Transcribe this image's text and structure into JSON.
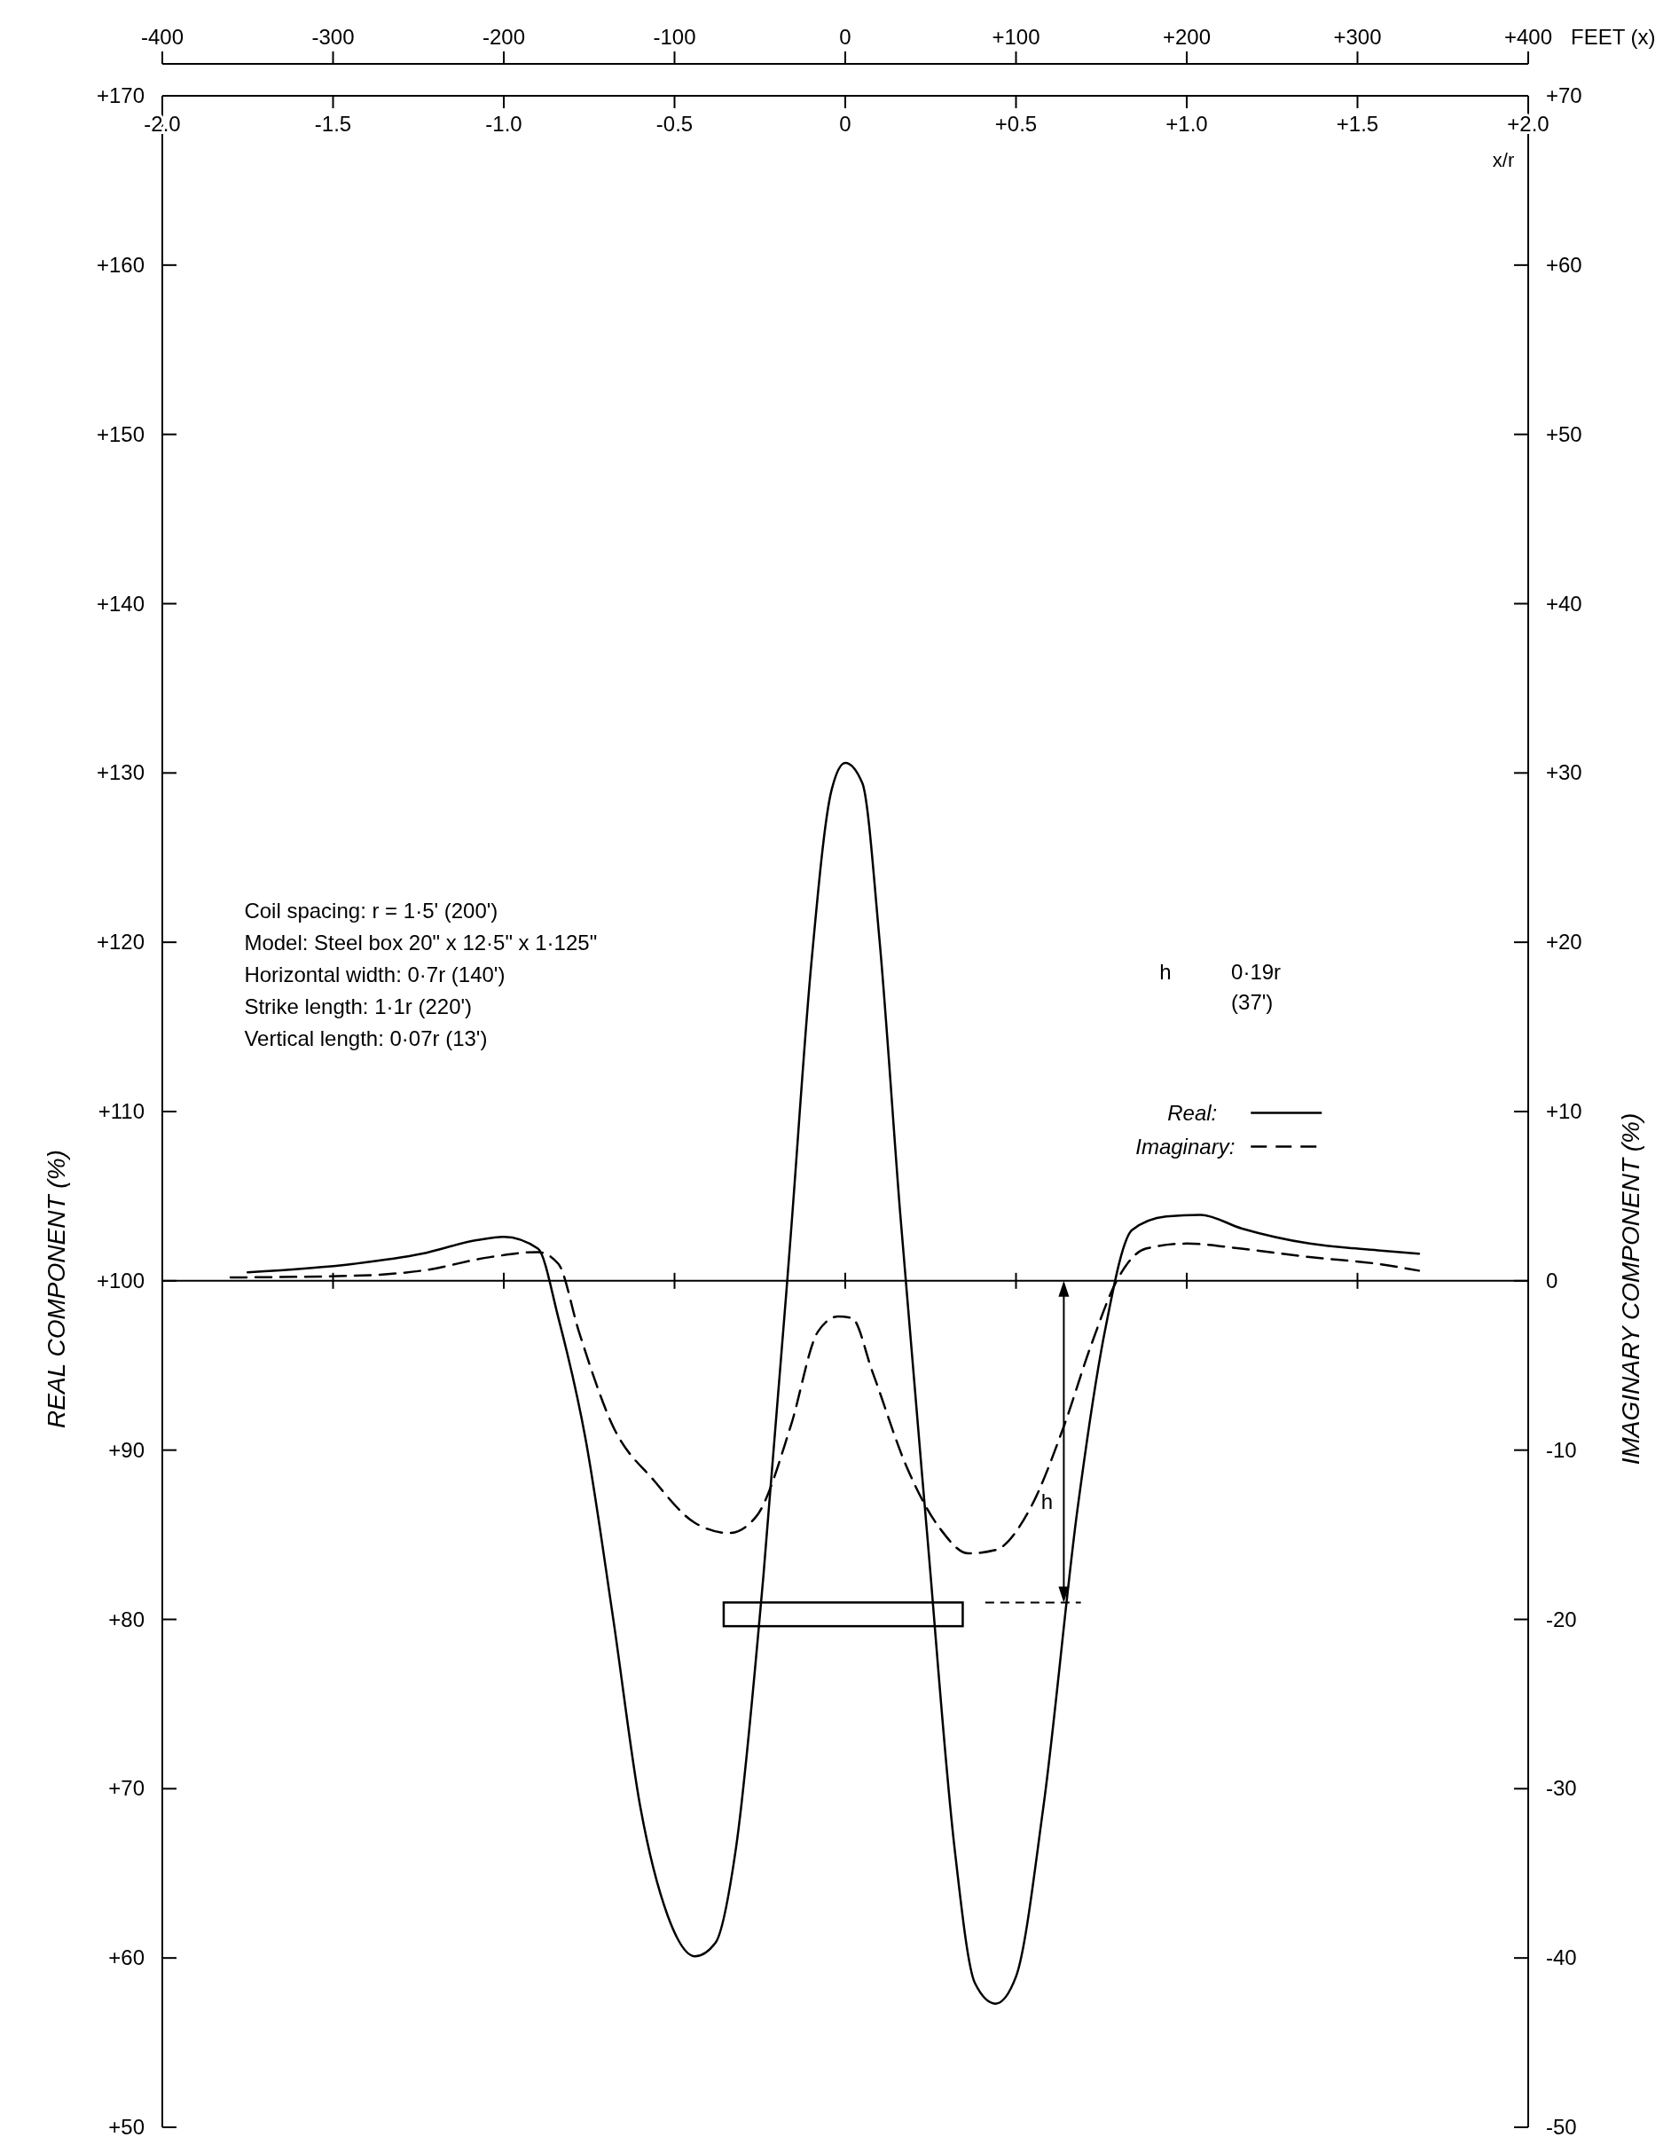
{
  "chart_data": {
    "type": "line",
    "xlabel": "FEET (x)",
    "x2label": "x/r",
    "ylabel": "REAL COMPONENT (%)",
    "y2label": "IMAGINARY COMPONENT (%)",
    "xlim": [
      -400,
      400
    ],
    "xticks": [
      -400,
      -300,
      -200,
      -100,
      0,
      {
        "value": 100,
        "label": "+100"
      },
      {
        "value": 200,
        "label": "+200"
      },
      {
        "value": 300,
        "label": "+300"
      },
      {
        "value": 400,
        "label": "+400"
      }
    ],
    "x2lim": [
      -2,
      2
    ],
    "x2ticks": [
      {
        "value": -2,
        "label": "-2.0"
      },
      {
        "value": -1.5,
        "label": "-1.5"
      },
      {
        "value": -1,
        "label": "-1.0"
      },
      {
        "value": -0.5,
        "label": "-0.5"
      },
      0,
      {
        "value": 0.5,
        "label": "+0.5"
      },
      {
        "value": 1,
        "label": "+1.0"
      },
      {
        "value": 1.5,
        "label": "+1.5"
      },
      {
        "value": 2,
        "label": "+2.0"
      }
    ],
    "ylim": [
      50,
      170
    ],
    "yticks": [
      {
        "value": 50,
        "label": "+50"
      },
      {
        "value": 60,
        "label": "+60"
      },
      {
        "value": 70,
        "label": "+70"
      },
      {
        "value": 80,
        "label": "+80"
      },
      {
        "value": 90,
        "label": "+90"
      },
      {
        "value": 100,
        "label": "+100"
      },
      {
        "value": 110,
        "label": "+110"
      },
      {
        "value": 120,
        "label": "+120"
      },
      {
        "value": 130,
        "label": "+130"
      },
      {
        "value": 140,
        "label": "+140"
      },
      {
        "value": 150,
        "label": "+150"
      },
      {
        "value": 160,
        "label": "+160"
      },
      {
        "value": 170,
        "label": "+170"
      }
    ],
    "y2lim": [
      -50,
      70
    ],
    "y2ticks": [
      -50,
      -40,
      -30,
      -20,
      -10,
      0,
      {
        "value": 10,
        "label": "+10"
      },
      {
        "value": 20,
        "label": "+20"
      },
      {
        "value": 30,
        "label": "+30"
      },
      {
        "value": 40,
        "label": "+40"
      },
      {
        "value": 50,
        "label": "+50"
      },
      {
        "value": 60,
        "label": "+60"
      },
      {
        "value": 70,
        "label": "+70"
      }
    ],
    "legend": "center right",
    "ref_lines": [
      {
        "axis": "y",
        "value": 100,
        "color": "#000000",
        "line_style": "solid"
      }
    ],
    "annotations": [
      "Coil spacing:  r = 1·5' (200')",
      "Model:  Steel box  20\" x 12·5\" x 1·125\"",
      "Horizontal width:  0·7r (140')",
      "Strike length:  1·1r (220')",
      "Vertical length:  0·07r (13')",
      "h",
      "h",
      "0·19r",
      "(37')"
    ],
    "series": [
      {
        "name": "Real:",
        "color": "#000000",
        "line_style": "solid",
        "x": [
          -350,
          -288,
          -248,
          -216,
          -200,
          -180,
          -168,
          -152,
          -136,
          -120,
          -104,
          -88,
          -76,
          -64,
          -48,
          -32,
          -20,
          -8,
          0,
          10,
          20,
          32,
          48,
          64,
          76,
          88,
          100,
          116,
          136,
          152,
          168,
          188,
          208,
          232,
          272,
          312,
          336
        ],
        "values": [
          100.5,
          101.0,
          101.6,
          102.4,
          102.6,
          101.9,
          97.8,
          90.6,
          80.1,
          68.9,
          62.5,
          60.1,
          60.9,
          66.5,
          82.5,
          102.6,
          118.6,
          129.0,
          130.6,
          129.4,
          120.2,
          104.2,
          85.0,
          66.5,
          58.5,
          57.3,
          58.9,
          68.9,
          86.5,
          97.0,
          103.0,
          103.8,
          103.9,
          103.1,
          102.2,
          101.8,
          101.6
        ]
      },
      {
        "name": "Imaginary:",
        "color": "#000000",
        "line_style": "dashed",
        "axis": "y2",
        "x": [
          -360,
          -288,
          -248,
          -208,
          -180,
          -168,
          -156,
          -136,
          -112,
          -88,
          -68,
          -52,
          -32,
          -16,
          -4,
          4,
          16,
          36,
          56,
          72,
          88,
          108,
          128,
          144,
          160,
          176,
          200,
          232,
          272,
          312,
          336
        ],
        "values": [
          0.2,
          0.3,
          0.6,
          1.4,
          1.7,
          1.0,
          -3.0,
          -8.6,
          -11.8,
          -14.3,
          -14.9,
          -13.9,
          -8.6,
          -3.0,
          -2.1,
          -2.2,
          -5.4,
          -11.0,
          -14.7,
          -16.1,
          -15.9,
          -13.5,
          -8.6,
          -3.8,
          0.2,
          1.9,
          2.2,
          1.9,
          1.4,
          1.0,
          0.6
        ]
      }
    ]
  }
}
